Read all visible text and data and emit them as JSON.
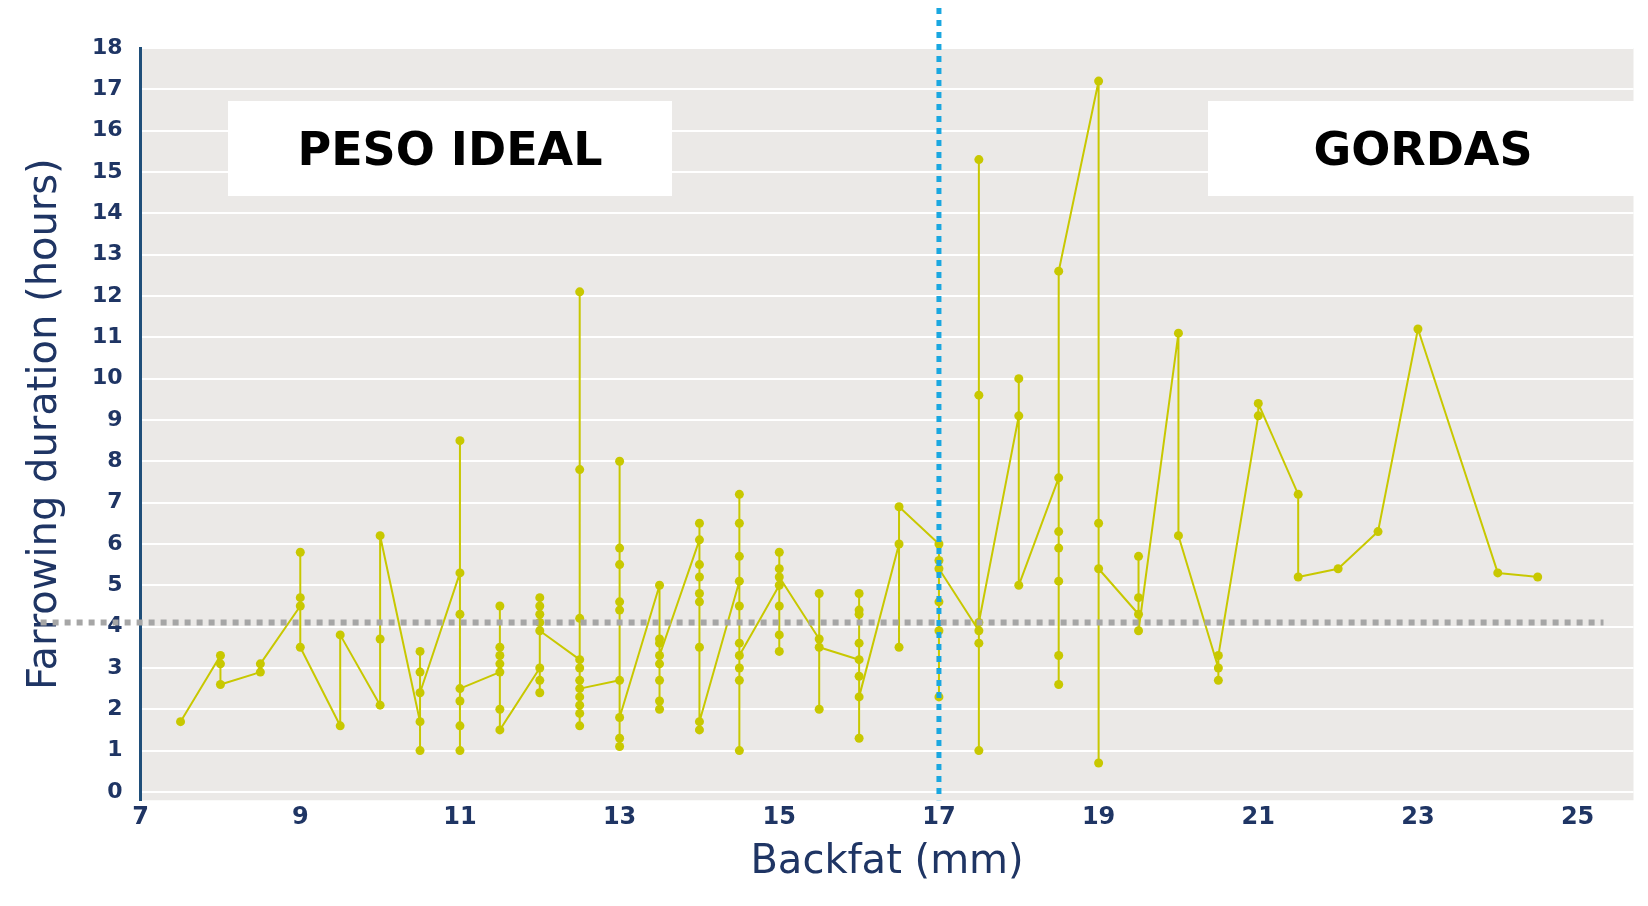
{
  "chart_data": {
    "type": "line",
    "xlabel": "Backfat (mm)",
    "ylabel": "Farrowing duration (hours)",
    "annotations": [
      "PESO IDEAL",
      "GORDAS"
    ],
    "xlim": [
      7,
      25.7
    ],
    "xticks": [
      7,
      9,
      11,
      13,
      15,
      17,
      19,
      21,
      23,
      25
    ],
    "ylim": [
      -0.2,
      18
    ],
    "yticks": [
      0,
      1,
      2,
      3,
      4,
      5,
      6,
      7,
      8,
      9,
      10,
      11,
      12,
      13,
      14,
      15,
      16,
      17,
      18
    ],
    "grid": "y",
    "marker": "circle",
    "line_style": "solid",
    "ref_lines": [
      {
        "axis": "x",
        "value": 17,
        "color": "#1aa7e0",
        "line_style": "dotted"
      },
      {
        "axis": "y",
        "value": 4.1,
        "color": "#a6a6a6",
        "line_style": "dotted"
      }
    ],
    "series": [
      {
        "color": "#c8c800",
        "x": [
          7.5,
          8,
          8,
          8,
          8.5,
          8.5,
          9,
          9,
          9,
          9,
          9.5,
          9.5,
          10,
          10,
          10,
          10.5,
          10.5,
          10.5,
          10.5,
          10.5,
          11,
          11,
          11,
          11,
          11,
          11,
          11,
          11.5,
          11.5,
          11.5,
          11.5,
          11.5,
          11.5,
          11.5,
          12,
          12,
          12,
          12,
          12,
          12,
          12,
          12,
          12.5,
          12.5,
          12.5,
          12.5,
          12.5,
          12.5,
          12.5,
          12.5,
          12.5,
          12.5,
          12.5,
          13,
          13,
          13,
          13,
          13,
          13,
          13,
          13,
          13,
          13.5,
          13.5,
          13.5,
          13.5,
          13.5,
          13.5,
          13.5,
          13.5,
          14,
          14,
          14,
          14,
          14,
          14,
          14,
          14,
          14,
          14.5,
          14.5,
          14.5,
          14.5,
          14.5,
          14.5,
          14.5,
          14.5,
          14.5,
          14.5,
          15,
          15,
          15,
          15,
          15,
          15,
          15,
          15.5,
          15.5,
          15.5,
          15.5,
          16,
          16,
          16,
          16,
          16,
          16,
          16,
          16,
          16.5,
          16.5,
          16.5,
          17,
          17,
          17,
          17,
          17,
          17,
          17.5,
          17.5,
          17.5,
          17.5,
          17.5,
          17.5,
          18,
          18,
          18,
          18.5,
          18.5,
          18.5,
          18.5,
          18.5,
          18.5,
          18.5,
          19,
          19,
          19,
          19,
          19.5,
          19.5,
          19.5,
          19.5,
          20,
          20,
          20.5,
          20.5,
          20.5,
          21,
          21,
          21.5,
          21.5,
          22,
          22.5,
          23,
          24,
          24.5
        ],
        "values": [
          1.7,
          3.3,
          3.1,
          2.6,
          2.9,
          3.1,
          4.5,
          4.7,
          5.8,
          3.5,
          1.6,
          3.8,
          2.1,
          3.7,
          6.2,
          1.7,
          1.0,
          3.4,
          2.9,
          2.4,
          5.3,
          8.5,
          1.0,
          1.6,
          2.2,
          4.3,
          2.5,
          2.9,
          4.5,
          3.5,
          3.3,
          3.1,
          2.0,
          1.5,
          3.0,
          2.4,
          2.7,
          4.7,
          4.5,
          4.3,
          4.1,
          3.9,
          3.2,
          12.1,
          7.8,
          4.2,
          3.0,
          2.7,
          1.6,
          1.9,
          2.1,
          2.3,
          2.5,
          2.7,
          8.0,
          5.9,
          5.5,
          4.6,
          4.4,
          1.1,
          1.3,
          1.8,
          5.0,
          2.0,
          2.2,
          2.7,
          3.1,
          3.6,
          3.7,
          3.3,
          6.1,
          6.5,
          5.5,
          5.2,
          4.8,
          4.6,
          3.5,
          1.5,
          1.7,
          5.1,
          7.2,
          6.5,
          5.7,
          4.5,
          1.0,
          2.7,
          3.0,
          3.6,
          3.3,
          5.0,
          3.4,
          3.8,
          4.5,
          5.8,
          5.4,
          5.2,
          3.7,
          4.8,
          2.0,
          3.5,
          3.2,
          4.8,
          4.4,
          4.3,
          3.6,
          1.3,
          2.8,
          2.3,
          6.0,
          3.5,
          6.9,
          6.0,
          2.3,
          3.9,
          4.6,
          5.6,
          5.4,
          3.9,
          3.6,
          1.0,
          15.3,
          9.6,
          4.1,
          9.1,
          10.0,
          5.0,
          7.6,
          2.6,
          3.3,
          5.1,
          5.9,
          6.3,
          12.6,
          17.2,
          0.7,
          6.5,
          5.4,
          4.3,
          4.7,
          5.7,
          3.9,
          11.1,
          6.2,
          3.0,
          2.7,
          3.3,
          9.1,
          9.4,
          7.2,
          5.2,
          5.4,
          6.3,
          11.2,
          5.3,
          5.2
        ]
      }
    ]
  }
}
